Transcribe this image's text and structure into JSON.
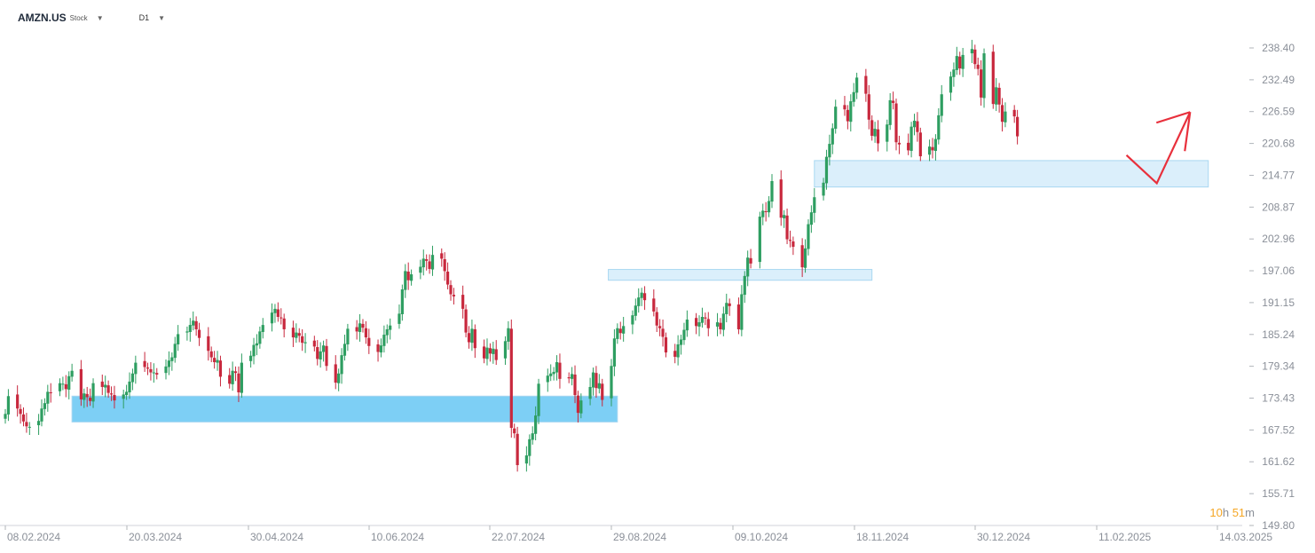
{
  "header": {
    "symbol": "AMZN.US",
    "type": "Stock",
    "timeframe": "D1"
  },
  "timer": {
    "hours": "10",
    "hours_unit": "h",
    "minutes": "51",
    "minutes_unit": "m"
  },
  "chart_data": {
    "type": "candlestick",
    "y_ticks": [
      "238.40",
      "232.49",
      "226.59",
      "220.68",
      "214.77",
      "208.87",
      "202.96",
      "197.06",
      "191.15",
      "185.24",
      "179.34",
      "173.43",
      "167.52",
      "161.62",
      "155.71",
      "149.80"
    ],
    "x_ticks": [
      "08.02.2024",
      "20.03.2024",
      "30.04.2024",
      "10.06.2024",
      "22.07.2024",
      "29.08.2024",
      "09.10.2024",
      "18.11.2024",
      "30.12.2024",
      "11.02.2025",
      "14.03.2025"
    ],
    "ylim": [
      149.8,
      241.5
    ],
    "up_color": "#2e9e61",
    "down_color": "#c8283d",
    "zones": [
      {
        "from": "2024-03-01",
        "to": "2024-08-28",
        "low": 169.0,
        "high": 173.8,
        "color": "#6fcaf5"
      },
      {
        "from": "2024-08-25",
        "to": "2024-11-20",
        "low": 195.3,
        "high": 197.3,
        "color": "#d8eefb"
      },
      {
        "from": "2024-11-01",
        "to": "2025-03-11",
        "low": 212.6,
        "high": 217.5,
        "color": "#d8eefb"
      }
    ],
    "projection": {
      "color": "#e8303c",
      "points": [
        [
          "2025-02-12",
          218.5
        ],
        [
          "2025-02-22",
          213.3
        ],
        [
          "2025-03-05",
          226.5
        ]
      ]
    },
    "closes": [
      170.5,
      173.8,
      171.5,
      170.5,
      169.1,
      168.2,
      168.1,
      169.2,
      171.5,
      172.5,
      174.6,
      174.4,
      176.2,
      176.1,
      175.1,
      177.5,
      178.5,
      173.2,
      174.3,
      173.6,
      172.9,
      176.2,
      175.5,
      175.9,
      174.4,
      174.1,
      173.0,
      174.1,
      174.6,
      176.5,
      178.0,
      180.0,
      179.2,
      178.9,
      178.2,
      178.2,
      177.8,
      179.3,
      180.4,
      181.0,
      183.5,
      185.3,
      185.8,
      187.0,
      187.8,
      186.2,
      184.6,
      182.2,
      181.0,
      180.1,
      180.5,
      177.4,
      176.1,
      178.5,
      178.1,
      174.5,
      180.0,
      181.3,
      183.3,
      183.6,
      185.8,
      187.0,
      189.3,
      190.0,
      188.5,
      188.3,
      186.2,
      184.7,
      185.6,
      185.0,
      183.7,
      183.8,
      183.0,
      180.7,
      182.1,
      183.2,
      179.4,
      176.3,
      178.0,
      181.4,
      183.5,
      186.3,
      185.8,
      187.3,
      186.5,
      184.7,
      183.1,
      182.0,
      183.2,
      185.2,
      186.2,
      186.9,
      189.1,
      193.6,
      197.0,
      195.3,
      196.4,
      197.8,
      199.3,
      198.9,
      197.4,
      200.0,
      199.3,
      197.0,
      194.5,
      192.7,
      192.3,
      190.0,
      185.6,
      183.8,
      186.3,
      182.7,
      180.8,
      182.8,
      181.7,
      182.6,
      180.5,
      184.0,
      186.4,
      167.9,
      166.9,
      161.0,
      162.8,
      165.8,
      166.9,
      170.2,
      176.1,
      177.6,
      178.0,
      178.3,
      180.1,
      177.0,
      177.1,
      177.9,
      174.0,
      170.7,
      173.0,
      175.5,
      178.2,
      175.3,
      176.2,
      173.1,
      179.4,
      184.5,
      186.4,
      185.5,
      186.8,
      188.8,
      190.6,
      192.1,
      193.0,
      191.6,
      189.5,
      186.9,
      186.4,
      184.8,
      181.9,
      181.1,
      183.4,
      184.3,
      186.1,
      188.0,
      186.8,
      187.5,
      188.5,
      188.2,
      186.4,
      187.5,
      186.2,
      189.1,
      191.1,
      190.5,
      186.2,
      192.7,
      196.1,
      199.5,
      198.4,
      207.1,
      208.2,
      208.0,
      210.0,
      213.7,
      206.9,
      207.4,
      202.9,
      202.6,
      201.5,
      197.7,
      201.2,
      205.7,
      207.9,
      210.7,
      213.4,
      218.2,
      220.6,
      223.5,
      227.5,
      227.0,
      224.8,
      228.5,
      230.2,
      232.9,
      229.9,
      225.1,
      222.1,
      223.4,
      220.7,
      224.2,
      228.7,
      228.2,
      220.9,
      220.5,
      219.4,
      223.8,
      224.9,
      222.8,
      218.3,
      220.1,
      219.4,
      221.5,
      225.9,
      229.8,
      233.1,
      234.4,
      236.9,
      234.6,
      237.1,
      238.2,
      235.4,
      234.5,
      229.2,
      237.4,
      228.0,
      231.1,
      227.9,
      224.7,
      226.6,
      225.7,
      222.0
    ],
    "sample_ohlc_note_shown": false
  }
}
